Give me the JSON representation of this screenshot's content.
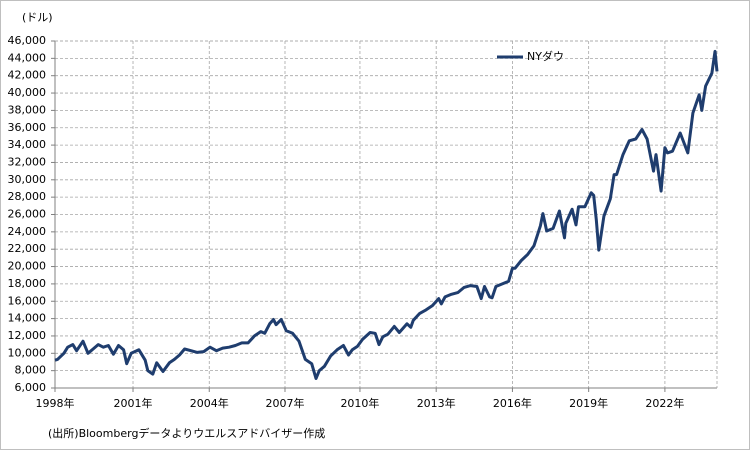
{
  "chart_data": {
    "type": "line",
    "unit_label": "(ドル)",
    "source": "(出所)Bloombergデータよりウエルスアドバイザー作成",
    "legend_position": "upper right",
    "grid": true,
    "x": [
      1998.9,
      1999.0,
      1999.25,
      1999.4,
      1999.6,
      1999.75,
      2000.0,
      2000.2,
      2000.4,
      2000.6,
      2000.8,
      2001.0,
      2001.2,
      2001.4,
      2001.6,
      2001.72,
      2001.9,
      2002.2,
      2002.45,
      2002.55,
      2002.75,
      2002.9,
      2003.15,
      2003.4,
      2003.6,
      2003.8,
      2004.0,
      2004.25,
      2004.5,
      2004.75,
      2005.0,
      2005.25,
      2005.5,
      2005.75,
      2006.0,
      2006.25,
      2006.5,
      2006.75,
      2007.0,
      2007.15,
      2007.35,
      2007.5,
      2007.6,
      2007.8,
      2008.0,
      2008.25,
      2008.5,
      2008.75,
      2009.0,
      2009.17,
      2009.3,
      2009.5,
      2009.75,
      2010.0,
      2010.25,
      2010.45,
      2010.6,
      2010.8,
      2011.0,
      2011.3,
      2011.5,
      2011.65,
      2011.8,
      2012.0,
      2012.25,
      2012.45,
      2012.75,
      2012.9,
      2013.0,
      2013.25,
      2013.5,
      2013.75,
      2014.0,
      2014.1,
      2014.25,
      2014.5,
      2014.75,
      2015.0,
      2015.25,
      2015.5,
      2015.67,
      2015.8,
      2016.0,
      2016.1,
      2016.25,
      2016.5,
      2016.75,
      2016.9,
      2017.0,
      2017.25,
      2017.5,
      2017.75,
      2018.0,
      2018.1,
      2018.25,
      2018.5,
      2018.75,
      2018.95,
      2019.0,
      2019.25,
      2019.4,
      2019.5,
      2019.75,
      2020.0,
      2020.1,
      2020.2,
      2020.3,
      2020.5,
      2020.75,
      2020.9,
      2021.0,
      2021.25,
      2021.5,
      2021.75,
      2022.0,
      2022.2,
      2022.45,
      2022.55,
      2022.75,
      2022.9,
      2023.0,
      2023.2,
      2023.5,
      2023.8,
      2024.0,
      2024.25,
      2024.35,
      2024.5,
      2024.75,
      2024.87,
      2024.95
    ],
    "series": [
      {
        "name": "NYダウ",
        "color": "#1f3d6e",
        "values": [
          9200,
          9300,
          10000,
          10700,
          11000,
          10300,
          11400,
          10000,
          10500,
          11000,
          10700,
          10900,
          9900,
          10900,
          10400,
          8800,
          10000,
          10400,
          9200,
          8000,
          7600,
          8900,
          7900,
          8900,
          9300,
          9800,
          10500,
          10300,
          10100,
          10200,
          10700,
          10300,
          10600,
          10700,
          10900,
          11200,
          11200,
          12000,
          12500,
          12300,
          13400,
          13900,
          13300,
          13900,
          12600,
          12300,
          11400,
          9300,
          8800,
          7100,
          8000,
          8500,
          9700,
          10400,
          10900,
          9800,
          10400,
          10800,
          11600,
          12400,
          12300,
          11000,
          11900,
          12200,
          13100,
          12400,
          13400,
          13000,
          13800,
          14600,
          15000,
          15500,
          16300,
          15700,
          16500,
          16800,
          17000,
          17600,
          17800,
          17700,
          16300,
          17700,
          16500,
          16400,
          17700,
          18000,
          18300,
          19800,
          19800,
          20700,
          21400,
          22400,
          24700,
          26100,
          24100,
          24400,
          26400,
          23300,
          25000,
          26600,
          24800,
          26900,
          26900,
          28500,
          28200,
          25400,
          21900,
          25800,
          27800,
          30600,
          30600,
          32900,
          34500,
          34700,
          35800,
          34700,
          31000,
          32900,
          28700,
          33700,
          33100,
          33300,
          35400,
          33100,
          37700,
          39800,
          38000,
          40800,
          42300,
          44800,
          42500
        ]
      }
    ],
    "xlim": [
      1998.9,
      2024.95
    ],
    "xticks": [
      {
        "value": 1998.9,
        "label": "1998年"
      },
      {
        "value": 2001.97,
        "label": "2001年"
      },
      {
        "value": 2004.97,
        "label": "2004年"
      },
      {
        "value": 2007.95,
        "label": "2007年"
      },
      {
        "value": 2010.9,
        "label": "2010年"
      },
      {
        "value": 2013.9,
        "label": "2013年"
      },
      {
        "value": 2016.9,
        "label": "2016年"
      },
      {
        "value": 2019.9,
        "label": "2019年"
      },
      {
        "value": 2022.9,
        "label": "2022年"
      }
    ],
    "ylim": [
      6000,
      46000
    ],
    "yticks": [
      {
        "value": 6000,
        "label": "6,000"
      },
      {
        "value": 8000,
        "label": "8,000"
      },
      {
        "value": 10000,
        "label": "10,000"
      },
      {
        "value": 12000,
        "label": "12,000"
      },
      {
        "value": 14000,
        "label": "14,000"
      },
      {
        "value": 16000,
        "label": "16,000"
      },
      {
        "value": 18000,
        "label": "18,000"
      },
      {
        "value": 20000,
        "label": "20,000"
      },
      {
        "value": 22000,
        "label": "22,000"
      },
      {
        "value": 24000,
        "label": "24,000"
      },
      {
        "value": 26000,
        "label": "26,000"
      },
      {
        "value": 28000,
        "label": "28,000"
      },
      {
        "value": 30000,
        "label": "30,000"
      },
      {
        "value": 32000,
        "label": "32,000"
      },
      {
        "value": 34000,
        "label": "34,000"
      },
      {
        "value": 36000,
        "label": "36,000"
      },
      {
        "value": 38000,
        "label": "38,000"
      },
      {
        "value": 40000,
        "label": "40,000"
      },
      {
        "value": 42000,
        "label": "42,000"
      },
      {
        "value": 44000,
        "label": "44,000"
      },
      {
        "value": 46000,
        "label": "46,000"
      }
    ]
  }
}
